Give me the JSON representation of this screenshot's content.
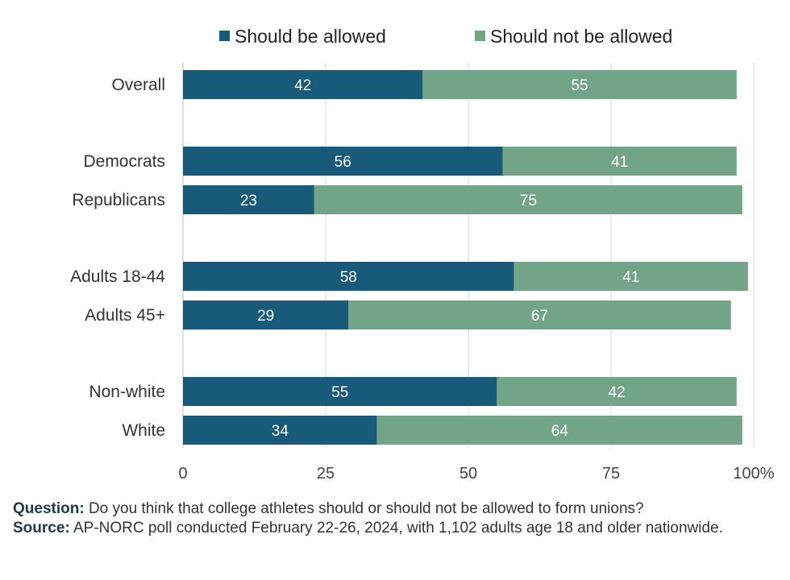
{
  "chart_data": {
    "type": "bar",
    "orientation": "horizontal",
    "stacked": true,
    "title": "",
    "categories": [
      "Overall",
      "Democrats",
      "Republicans",
      "Adults 18-44",
      "Adults 45+",
      "Non-white",
      "White"
    ],
    "series": [
      {
        "name": "Should be allowed",
        "color": "#175a7a",
        "values": [
          42,
          56,
          23,
          58,
          29,
          55,
          34
        ]
      },
      {
        "name": "Should not be allowed",
        "color": "#72a487",
        "values": [
          55,
          41,
          75,
          41,
          67,
          42,
          64
        ]
      }
    ],
    "xlim": [
      0,
      100
    ],
    "xticks": [
      "0",
      "25",
      "50",
      "75",
      "100%"
    ],
    "grid": true,
    "legend": "top"
  },
  "notes": {
    "question_label": "Question:",
    "question_text": " Do you think that college athletes should or should not be allowed to form unions?",
    "source_label": "Source:",
    "source_text": " AP-NORC poll conducted February 22-26, 2024, with 1,102 adults age 18 and older nationwide."
  }
}
